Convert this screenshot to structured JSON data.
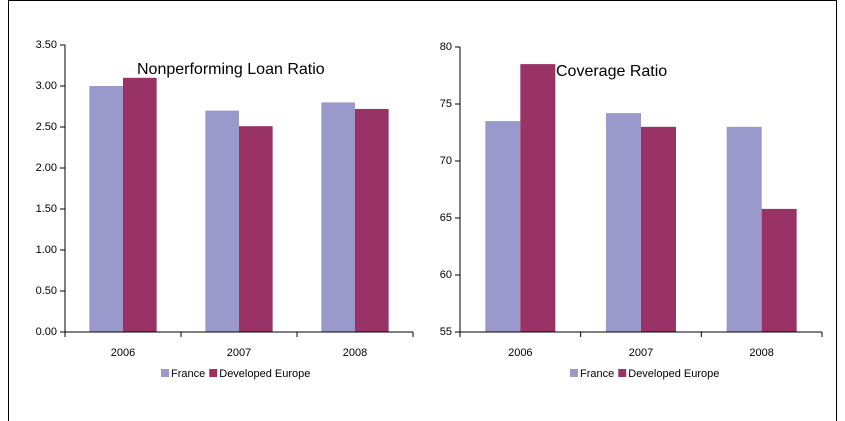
{
  "chart_data": [
    {
      "type": "bar",
      "title": "Nonperforming Loan Ratio",
      "categories": [
        "2006",
        "2007",
        "2008"
      ],
      "series": [
        {
          "name": "France",
          "color": "#9999cc",
          "values": [
            3.0,
            2.7,
            2.8
          ]
        },
        {
          "name": "Developed Europe",
          "color": "#993366",
          "values": [
            3.1,
            2.51,
            2.72
          ]
        }
      ],
      "ylim": [
        0,
        3.5
      ],
      "yticks": [
        {
          "value": 0,
          "label": "0.00"
        },
        {
          "value": 0.5,
          "label": "0.50"
        },
        {
          "value": 1,
          "label": "1.00"
        },
        {
          "value": 1.5,
          "label": "1.50"
        },
        {
          "value": 2,
          "label": "2.00"
        },
        {
          "value": 2.5,
          "label": "2.50"
        },
        {
          "value": 3,
          "label": "3.00"
        },
        {
          "value": 3.5,
          "label": "3.50"
        }
      ],
      "grid": false,
      "legend": "bottom"
    },
    {
      "type": "bar",
      "title": "Coverage Ratio",
      "categories": [
        "2006",
        "2007",
        "2008"
      ],
      "series": [
        {
          "name": "France",
          "color": "#9999cc",
          "values": [
            73.5,
            74.2,
            73.0
          ]
        },
        {
          "name": "Developed Europe",
          "color": "#993366",
          "values": [
            78.5,
            73.0,
            65.8
          ]
        }
      ],
      "ylim": [
        55,
        80
      ],
      "yticks": [
        55,
        60,
        65,
        70,
        75,
        80
      ],
      "grid": false,
      "legend": "bottom"
    }
  ]
}
